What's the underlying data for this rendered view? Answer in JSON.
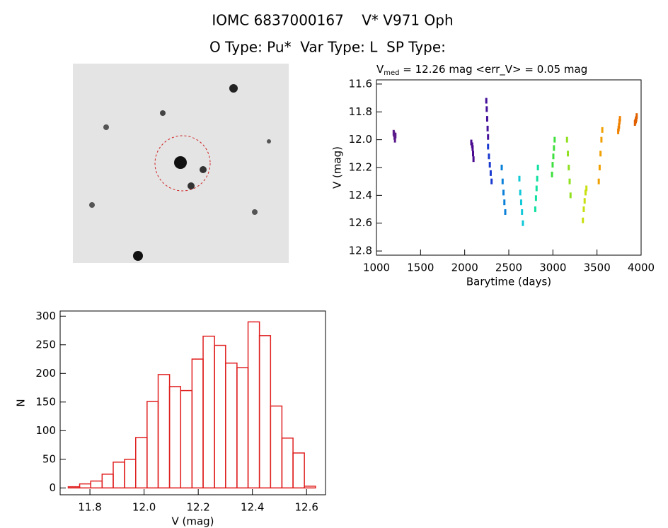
{
  "page": {
    "title": "IOMC 6837000167    V* V971 Oph",
    "subtitle": "O Type: Pu*  Var Type: L  SP Type:"
  },
  "chart_data": [
    {
      "type": "scatter",
      "title_main": "V",
      "title_sub": "med",
      "title_rest": " = 12.26 mag <err_V> = 0.05 mag",
      "xlabel": "Barytime (days)",
      "ylabel": "V (mag)",
      "xlim": [
        1000,
        4000
      ],
      "xticks": [
        1000,
        1500,
        2000,
        2500,
        3000,
        3500,
        4000
      ],
      "ylim": [
        12.83,
        11.57
      ],
      "yticks": [
        11.6,
        11.8,
        {
          "value": 12,
          "label": "12.0"
        },
        12.2,
        12.4,
        12.6,
        12.8
      ],
      "series": [
        {
          "color": "#5a1a8a",
          "x": [
            1195,
            1200,
            1205,
            1210,
            1215
          ],
          "values": [
            11.95,
            11.96,
            11.98,
            12.0,
            11.97
          ]
        },
        {
          "color": "#4a0a90",
          "x": [
            2075,
            2085,
            2090,
            2095,
            2100
          ],
          "values": [
            12.02,
            12.04,
            12.06,
            12.1,
            12.14
          ]
        },
        {
          "color": "#45109a",
          "x": [
            2245,
            2250,
            2255,
            2260,
            2265
          ],
          "values": [
            11.72,
            11.78,
            11.85,
            11.92,
            11.98
          ]
        },
        {
          "color": "#1a3ad0",
          "x": [
            2265,
            2275,
            2285,
            2295,
            2305
          ],
          "values": [
            12.05,
            12.12,
            12.18,
            12.24,
            12.3
          ]
        },
        {
          "color": "#0a80d8",
          "x": [
            2420,
            2430,
            2440,
            2450,
            2460
          ],
          "values": [
            12.2,
            12.3,
            12.38,
            12.45,
            12.52
          ]
        },
        {
          "color": "#10c8d8",
          "x": [
            2620,
            2630,
            2640,
            2650,
            2660
          ],
          "values": [
            12.28,
            12.38,
            12.45,
            12.52,
            12.6
          ]
        },
        {
          "color": "#10e0a0",
          "x": [
            2800,
            2808,
            2815,
            2822,
            2830
          ],
          "values": [
            12.5,
            12.42,
            12.35,
            12.28,
            12.2
          ]
        },
        {
          "color": "#40e040",
          "x": [
            2990,
            2997,
            3005,
            3012,
            3020
          ],
          "values": [
            12.25,
            12.18,
            12.12,
            12.06,
            12.0
          ]
        },
        {
          "color": "#90e020",
          "x": [
            3160,
            3170,
            3180,
            3190,
            3200
          ],
          "values": [
            12.0,
            12.1,
            12.2,
            12.3,
            12.4
          ]
        },
        {
          "color": "#c8e010",
          "x": [
            3340,
            3350,
            3360,
            3370,
            3380
          ],
          "values": [
            12.58,
            12.5,
            12.44,
            12.38,
            12.35
          ]
        },
        {
          "color": "#f0a000",
          "x": [
            3520,
            3530,
            3540,
            3550,
            3560
          ],
          "values": [
            12.3,
            12.2,
            12.1,
            12.0,
            11.93
          ]
        },
        {
          "color": "#f08000",
          "x": [
            3740,
            3745,
            3750,
            3755,
            3760
          ],
          "values": [
            11.94,
            11.92,
            11.9,
            11.87,
            11.85
          ]
        },
        {
          "color": "#e06000",
          "x": [
            3930,
            3935,
            3940,
            3945,
            3950
          ],
          "values": [
            11.88,
            11.87,
            11.86,
            11.85,
            11.83
          ]
        }
      ]
    },
    {
      "type": "histogram",
      "xlabel": "V (mag)",
      "ylabel": "N",
      "color": "#e02020",
      "xlim": [
        11.69,
        12.67
      ],
      "xticks": [
        11.8,
        {
          "value": 12,
          "label": "12.0"
        },
        12.2,
        12.4,
        12.6
      ],
      "ylim": [
        -12,
        309
      ],
      "yticks": [
        0,
        50,
        100,
        150,
        200,
        250,
        300
      ],
      "bins": [
        11.72,
        11.762,
        11.803,
        11.845,
        11.886,
        11.928,
        11.969,
        12.011,
        12.052,
        12.094,
        12.135,
        12.177,
        12.218,
        12.26,
        12.301,
        12.343,
        12.384,
        12.426,
        12.467,
        12.509,
        12.55,
        12.592,
        12.633
      ],
      "values": [
        2,
        7,
        12,
        24,
        45,
        50,
        88,
        151,
        198,
        177,
        170,
        225,
        265,
        249,
        218,
        210,
        290,
        266,
        143,
        87,
        61,
        3
      ]
    }
  ]
}
